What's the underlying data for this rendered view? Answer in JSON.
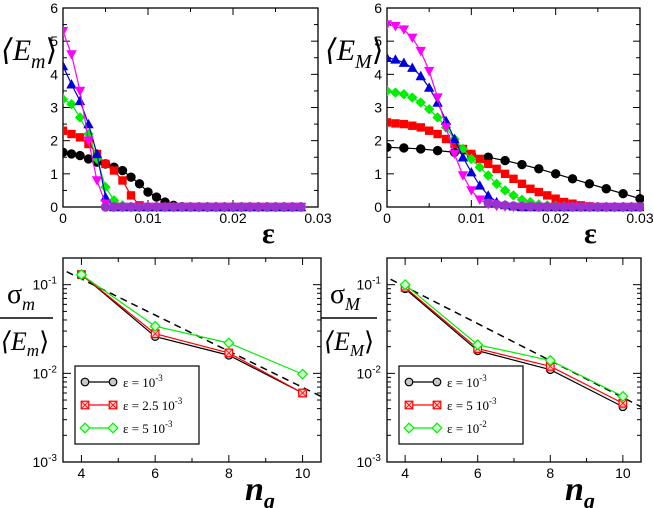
{
  "chart_data": [
    {
      "id": "tl",
      "type": "line",
      "ylabel_main": "⟨E",
      "ylabel_sub": "m",
      "ylabel_close": "⟩",
      "xlabel": "ε",
      "xlim": [
        0,
        0.03
      ],
      "ylim": [
        0,
        6
      ],
      "xticks": [
        0,
        0.01,
        0.02,
        0.03
      ],
      "xtick_labels": [
        "0",
        "0.01",
        "0.02",
        "0.03"
      ],
      "yticks": [
        0,
        1,
        2,
        3,
        4,
        5,
        6
      ],
      "ytick_labels": [
        "0",
        "1",
        "2",
        "3",
        "4",
        "5",
        "6"
      ],
      "series": [
        {
          "name": "black circles",
          "color": "#000000",
          "marker": "circle",
          "x": [
            0,
            0.001,
            0.002,
            0.003,
            0.004,
            0.005,
            0.006,
            0.007,
            0.008,
            0.009,
            0.01,
            0.011,
            0.012,
            0.013,
            0.014,
            0.015,
            0.016,
            0.017,
            0.018,
            0.019,
            0.02,
            0.021,
            0.022,
            0.023,
            0.024,
            0.025,
            0.026,
            0.027,
            0.028
          ],
          "y": [
            1.65,
            1.6,
            1.55,
            1.45,
            1.35,
            1.3,
            1.2,
            1.1,
            0.9,
            0.7,
            0.45,
            0.3,
            0.15,
            0.05,
            0.01,
            0,
            0,
            0,
            0,
            0,
            0,
            0,
            0,
            0,
            0,
            0,
            0,
            0,
            0
          ]
        },
        {
          "name": "red squares",
          "color": "#ff0000",
          "marker": "square",
          "x": [
            0,
            0.001,
            0.002,
            0.003,
            0.004,
            0.005,
            0.006,
            0.007,
            0.008,
            0.009,
            0.01,
            0.011,
            0.012,
            0.013,
            0.014,
            0.015,
            0.016,
            0.017,
            0.018,
            0.019,
            0.02,
            0.021,
            0.022,
            0.023,
            0.024,
            0.025,
            0.026,
            0.027,
            0.028
          ],
          "y": [
            2.3,
            2.2,
            2.1,
            1.9,
            1.6,
            1.3,
            1.1,
            0.8,
            0.35,
            0.05,
            0,
            0,
            0,
            0,
            0,
            0,
            0,
            0,
            0,
            0,
            0,
            0,
            0,
            0,
            0,
            0,
            0,
            0,
            0
          ]
        },
        {
          "name": "green diamonds",
          "color": "#00ee00",
          "marker": "diamond",
          "x": [
            0,
            0.001,
            0.002,
            0.003,
            0.004,
            0.005,
            0.006,
            0.007,
            0.008,
            0.009,
            0.01,
            0.011,
            0.012,
            0.013,
            0.014,
            0.015,
            0.016,
            0.017,
            0.018,
            0.019,
            0.02,
            0.021,
            0.022,
            0.023,
            0.024,
            0.025,
            0.026,
            0.027,
            0.028
          ],
          "y": [
            3.25,
            3.1,
            2.7,
            2.2,
            1.45,
            0.6,
            0.2,
            0.05,
            0,
            0,
            0,
            0,
            0,
            0,
            0,
            0,
            0,
            0,
            0,
            0,
            0,
            0,
            0,
            0,
            0,
            0,
            0,
            0,
            0
          ]
        },
        {
          "name": "blue triangles",
          "color": "#0000dd",
          "marker": "triangle-up",
          "x": [
            0,
            0.001,
            0.002,
            0.003,
            0.004,
            0.005,
            0.006,
            0.007,
            0.008,
            0.009,
            0.01,
            0.011,
            0.012,
            0.013,
            0.014,
            0.015,
            0.016,
            0.017,
            0.018,
            0.019,
            0.02,
            0.021,
            0.022,
            0.023,
            0.024,
            0.025,
            0.026,
            0.027,
            0.028
          ],
          "y": [
            4.25,
            3.7,
            3.2,
            2.5,
            1.6,
            0.3,
            0,
            0,
            0,
            0,
            0,
            0,
            0,
            0,
            0,
            0,
            0,
            0,
            0,
            0,
            0,
            0,
            0,
            0,
            0,
            0,
            0,
            0,
            0
          ]
        },
        {
          "name": "magenta triangles",
          "color": "#ff00ff",
          "marker": "triangle-down",
          "x": [
            0,
            0.001,
            0.002,
            0.003,
            0.004,
            0.005,
            0.006,
            0.007,
            0.008,
            0.009,
            0.01,
            0.011,
            0.012,
            0.013,
            0.014,
            0.015,
            0.016,
            0.017,
            0.018,
            0.019,
            0.02,
            0.021,
            0.022,
            0.023,
            0.024,
            0.025,
            0.026,
            0.027,
            0.028
          ],
          "y": [
            5.3,
            4.6,
            3.5,
            2.0,
            0.8,
            0.1,
            0,
            0,
            0,
            0,
            0,
            0,
            0,
            0,
            0,
            0,
            0,
            0,
            0,
            0,
            0,
            0,
            0,
            0,
            0,
            0,
            0,
            0,
            0
          ]
        },
        {
          "name": "purple circles",
          "color": "#9933cc",
          "marker": "circle",
          "x": [
            0.005,
            0.006,
            0.007,
            0.008,
            0.009,
            0.01,
            0.011,
            0.012,
            0.013,
            0.014,
            0.015,
            0.016,
            0.017,
            0.018,
            0.019,
            0.02,
            0.021,
            0.022,
            0.023,
            0.024,
            0.025,
            0.026,
            0.027,
            0.028
          ],
          "y": [
            0,
            0,
            0,
            0,
            0,
            0,
            0,
            0,
            0,
            0,
            0,
            0,
            0,
            0,
            0,
            0,
            0,
            0,
            0,
            0,
            0,
            0,
            0,
            0
          ]
        }
      ]
    },
    {
      "id": "tr",
      "type": "line",
      "ylabel_main": "⟨E",
      "ylabel_sub": "M",
      "ylabel_close": "⟩",
      "xlabel": "ε",
      "xlim": [
        0,
        0.03
      ],
      "ylim": [
        0,
        6
      ],
      "xticks": [
        0,
        0.01,
        0.02,
        0.03
      ],
      "xtick_labels": [
        "0",
        "0.01",
        "0.02",
        "0.03"
      ],
      "yticks": [
        0,
        1,
        2,
        3,
        4,
        5,
        6
      ],
      "ytick_labels": [
        "0",
        "1",
        "2",
        "3",
        "4",
        "5",
        "6"
      ],
      "series": [
        {
          "name": "black circles",
          "color": "#000000",
          "marker": "circle",
          "x": [
            0,
            0.002,
            0.004,
            0.006,
            0.008,
            0.01,
            0.012,
            0.014,
            0.016,
            0.018,
            0.02,
            0.022,
            0.024,
            0.026,
            0.028,
            0.03
          ],
          "y": [
            1.8,
            1.78,
            1.75,
            1.7,
            1.65,
            1.58,
            1.5,
            1.4,
            1.28,
            1.15,
            1.0,
            0.85,
            0.7,
            0.55,
            0.4,
            0.25
          ]
        },
        {
          "name": "red squares",
          "color": "#ff0000",
          "marker": "square",
          "x": [
            0,
            0.001,
            0.002,
            0.003,
            0.004,
            0.005,
            0.006,
            0.007,
            0.008,
            0.009,
            0.01,
            0.011,
            0.012,
            0.013,
            0.014,
            0.015,
            0.016,
            0.017,
            0.018,
            0.019,
            0.02,
            0.021,
            0.022,
            0.023,
            0.024
          ],
          "y": [
            2.55,
            2.52,
            2.5,
            2.45,
            2.4,
            2.3,
            2.2,
            2.05,
            1.9,
            1.75,
            1.6,
            1.45,
            1.3,
            1.15,
            1.0,
            0.85,
            0.7,
            0.55,
            0.45,
            0.35,
            0.25,
            0.15,
            0.1,
            0.05,
            0.02
          ]
        },
        {
          "name": "green diamonds",
          "color": "#00ee00",
          "marker": "diamond",
          "x": [
            0,
            0.001,
            0.002,
            0.003,
            0.004,
            0.005,
            0.006,
            0.007,
            0.008,
            0.009,
            0.01,
            0.011,
            0.012,
            0.013,
            0.014,
            0.015,
            0.016,
            0.017,
            0.018,
            0.019,
            0.02,
            0.021,
            0.022,
            0.023,
            0.024,
            0.025,
            0.026,
            0.027,
            0.028,
            0.029,
            0.03
          ],
          "y": [
            3.5,
            3.45,
            3.4,
            3.3,
            3.15,
            2.95,
            2.7,
            2.4,
            2.05,
            1.75,
            1.45,
            1.2,
            0.95,
            0.7,
            0.5,
            0.35,
            0.22,
            0.15,
            0.08,
            0.05,
            0.03,
            0.02,
            0.01,
            0,
            0,
            0,
            0,
            0,
            0,
            0,
            0
          ]
        },
        {
          "name": "blue triangles",
          "color": "#0000dd",
          "marker": "triangle-up",
          "x": [
            0,
            0.001,
            0.002,
            0.003,
            0.004,
            0.005,
            0.006,
            0.007,
            0.008,
            0.009,
            0.01,
            0.011,
            0.012,
            0.013,
            0.014,
            0.015,
            0.016,
            0.017,
            0.018,
            0.019,
            0.02,
            0.021,
            0.022,
            0.023,
            0.024,
            0.025,
            0.026,
            0.027,
            0.028,
            0.029,
            0.03
          ],
          "y": [
            4.5,
            4.45,
            4.35,
            4.2,
            3.95,
            3.6,
            3.15,
            2.6,
            2.05,
            1.5,
            1.05,
            0.65,
            0.35,
            0.15,
            0.06,
            0.02,
            0,
            0,
            0,
            0,
            0,
            0,
            0,
            0,
            0,
            0,
            0,
            0,
            0,
            0,
            0
          ]
        },
        {
          "name": "magenta triangles",
          "color": "#ff00ff",
          "marker": "triangle-down",
          "x": [
            0,
            0.001,
            0.002,
            0.003,
            0.004,
            0.005,
            0.006,
            0.007,
            0.008,
            0.009,
            0.01,
            0.011,
            0.012,
            0.013,
            0.014,
            0.015,
            0.016,
            0.017,
            0.018,
            0.019,
            0.02,
            0.021,
            0.022,
            0.023,
            0.024,
            0.025,
            0.026,
            0.027,
            0.028,
            0.029,
            0.03
          ],
          "y": [
            5.5,
            5.45,
            5.35,
            5.1,
            4.7,
            4.1,
            3.3,
            2.4,
            1.6,
            0.95,
            0.5,
            0.22,
            0.08,
            0.03,
            0.01,
            0,
            0,
            0,
            0,
            0,
            0,
            0,
            0,
            0,
            0,
            0,
            0,
            0,
            0,
            0,
            0
          ]
        },
        {
          "name": "purple circles",
          "color": "#9933cc",
          "marker": "circle",
          "x": [
            0.012,
            0.013,
            0.014,
            0.015,
            0.016,
            0.017,
            0.018,
            0.019,
            0.02,
            0.021,
            0.022,
            0.023,
            0.024,
            0.025,
            0.026,
            0.027,
            0.028,
            0.029,
            0.03
          ],
          "y": [
            0.12,
            0.08,
            0.05,
            0.03,
            0.02,
            0.01,
            0,
            0,
            0,
            0,
            0,
            0,
            0,
            0,
            0,
            0,
            0,
            0,
            0
          ]
        }
      ]
    },
    {
      "id": "bl",
      "type": "line",
      "scale": "log",
      "ylabel_main": "σ",
      "ylabel_sub": "m",
      "den_main": "⟨E",
      "den_sub": "m",
      "den_close": "⟩",
      "xlabel_main": "n",
      "xlabel_sub": "q",
      "xlim": [
        3.5,
        10.5
      ],
      "ylim": [
        0.001,
        0.2
      ],
      "xticks": [
        4,
        6,
        8,
        10
      ],
      "xtick_labels": [
        "4",
        "6",
        "8",
        "10"
      ],
      "yticks": [
        0.001,
        0.01,
        0.1
      ],
      "ytick_base": [
        "10",
        "10",
        "10"
      ],
      "ytick_exp": [
        "-3",
        "-2",
        "-1"
      ],
      "dashed_fit": {
        "x": [
          3.6,
          10.5
        ],
        "y": [
          0.14,
          0.0055
        ]
      },
      "series": [
        {
          "name": "ε = 10",
          "name_exp": "-3",
          "color": "#000000",
          "marker": "circle",
          "x": [
            4,
            6,
            8,
            10
          ],
          "y": [
            0.13,
            0.026,
            0.016,
            0.006
          ]
        },
        {
          "name": "ε = 2.5 10",
          "name_exp": "-3",
          "color": "#ff0000",
          "marker": "square-x",
          "x": [
            4,
            6,
            8,
            10
          ],
          "y": [
            0.13,
            0.028,
            0.017,
            0.006
          ]
        },
        {
          "name": "ε = 5 10",
          "name_exp": "-3",
          "color": "#00ee00",
          "marker": "diamond",
          "x": [
            4,
            6,
            8,
            10
          ],
          "y": [
            0.13,
            0.034,
            0.022,
            0.0098
          ]
        }
      ]
    },
    {
      "id": "br",
      "type": "line",
      "scale": "log",
      "ylabel_main": "σ",
      "ylabel_sub": "M",
      "den_main": "⟨E",
      "den_sub": "M",
      "den_close": "⟩",
      "xlabel_main": "n",
      "xlabel_sub": "q",
      "xlim": [
        3.5,
        10.5
      ],
      "ylim": [
        0.001,
        0.2
      ],
      "xticks": [
        4,
        6,
        8,
        10
      ],
      "xtick_labels": [
        "4",
        "6",
        "8",
        "10"
      ],
      "yticks": [
        0.001,
        0.01,
        0.1
      ],
      "ytick_base": [
        "10",
        "10",
        "10"
      ],
      "ytick_exp": [
        "-3",
        "-2",
        "-1"
      ],
      "dashed_fit": {
        "x": [
          3.6,
          10.5
        ],
        "y": [
          0.115,
          0.0042
        ]
      },
      "series": [
        {
          "name": "ε = 10",
          "name_exp": "-3",
          "color": "#000000",
          "marker": "circle",
          "x": [
            4,
            6,
            8,
            10
          ],
          "y": [
            0.09,
            0.018,
            0.011,
            0.0042
          ]
        },
        {
          "name": "ε = 5 10",
          "name_exp": "-3",
          "color": "#ff0000",
          "marker": "square-x",
          "x": [
            4,
            6,
            8,
            10
          ],
          "y": [
            0.093,
            0.019,
            0.012,
            0.0046
          ]
        },
        {
          "name": "ε = 10",
          "name_exp": "-2",
          "color": "#00ee00",
          "marker": "diamond",
          "x": [
            4,
            6,
            8,
            10
          ],
          "y": [
            0.1,
            0.021,
            0.014,
            0.0055
          ]
        }
      ]
    }
  ]
}
